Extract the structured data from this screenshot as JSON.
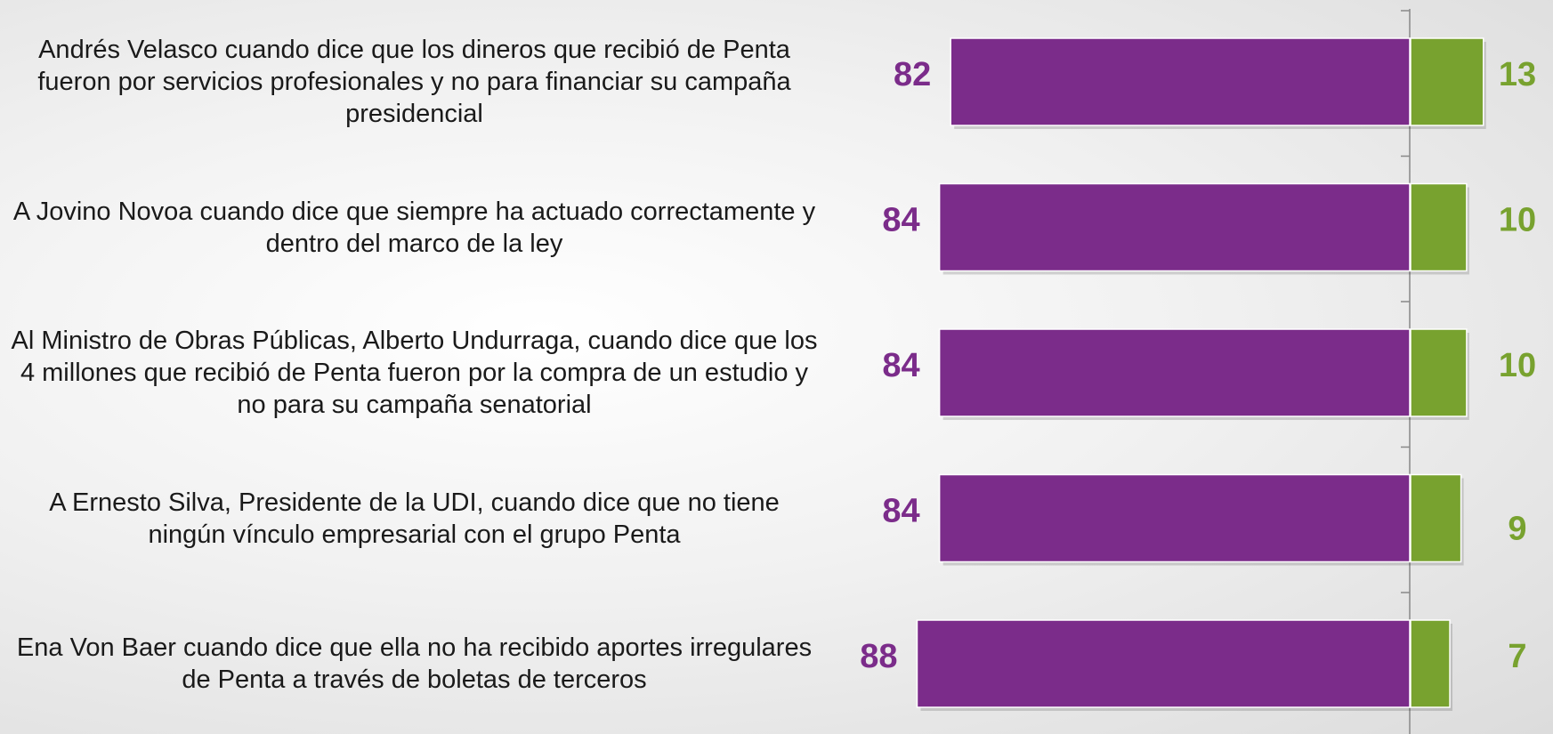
{
  "chart_data": {
    "type": "diverging-bar",
    "categories": [
      "Andrés Velasco cuando dice que los dineros que recibió de Penta fueron por servicios profesionales y no para financiar su campaña presidencial",
      "A Jovino Novoa cuando dice que siempre ha actuado correctamente y dentro del marco de la ley",
      "Al Ministro de Obras Públicas, Alberto Undurraga, cuando dice que los 4 millones que recibió de Penta fueron por la compra de un estudio y no para su campaña senatorial",
      "A Ernesto Silva, Presidente de la UDI, cuando dice que no tiene ningún vínculo empresarial con el grupo Penta",
      "Ena Von Baer cuando dice que ella no ha recibido aportes irregulares de Penta a través de boletas de terceros"
    ],
    "series": [
      {
        "color": "#7b2c8a",
        "values": [
          82,
          84,
          84,
          84,
          88
        ]
      },
      {
        "color": "#78a22f",
        "values": [
          13,
          10,
          10,
          9,
          7
        ]
      }
    ]
  }
}
